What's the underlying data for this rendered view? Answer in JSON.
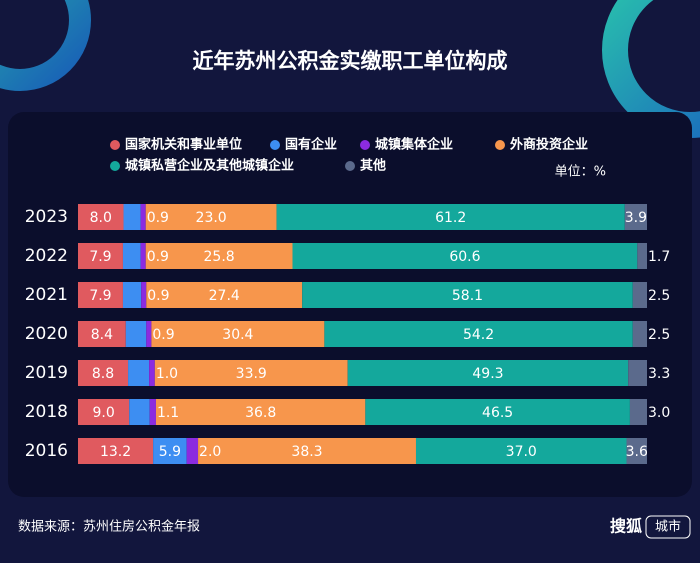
{
  "chart_data": {
    "type": "stacked-bar-horizontal",
    "title": "近年苏州公积金实缴职工单位构成",
    "unit_note": "单位：%",
    "source": "数据来源：苏州住房公积金年报",
    "logo": "搜狐",
    "logo_tag": "城市",
    "categories": [
      "2023",
      "2022",
      "2021",
      "2020",
      "2019",
      "2018",
      "2016"
    ],
    "series": [
      {
        "name": "国家机关和事业单位",
        "color": "#e05a5f",
        "values": [
          8.0,
          7.9,
          7.9,
          8.4,
          8.8,
          9.0,
          13.2
        ],
        "value_labels": [
          "8.0",
          "7.9",
          "7.9",
          "8.4",
          "8.8",
          "9.0",
          "13.2"
        ]
      },
      {
        "name": "国有企业",
        "color": "#3d8ef2",
        "values": [
          3.0,
          3.1,
          3.2,
          3.6,
          3.7,
          3.6,
          5.9
        ],
        "value_labels": [
          null,
          null,
          null,
          null,
          null,
          null,
          "5.9"
        ]
      },
      {
        "name": "城镇集体企业",
        "color": "#8b2be0",
        "values": [
          0.9,
          0.9,
          0.9,
          0.9,
          1.0,
          1.1,
          2.0
        ],
        "value_labels": [
          "0.9",
          "0.9",
          "0.9",
          "0.9",
          "1.0",
          "1.1",
          "2.0"
        ]
      },
      {
        "name": "外商投资企业",
        "color": "#f7964c",
        "values": [
          23.0,
          25.8,
          27.4,
          30.4,
          33.9,
          36.8,
          38.3
        ],
        "value_labels": [
          "23.0",
          "25.8",
          "27.4",
          "30.4",
          "33.9",
          "36.8",
          "38.3"
        ]
      },
      {
        "name": "城镇私营企业及其他城镇企业",
        "color": "#14a89c",
        "values": [
          61.2,
          60.6,
          58.1,
          54.2,
          49.3,
          46.5,
          37.0
        ],
        "value_labels": [
          "61.2",
          "60.6",
          "58.1",
          "54.2",
          "49.3",
          "46.5",
          "37.0"
        ]
      },
      {
        "name": "其他",
        "color": "#5b6a8c",
        "values": [
          3.9,
          1.7,
          2.5,
          2.5,
          3.3,
          3.0,
          3.6
        ],
        "value_labels": [
          "3.9",
          "1.7",
          "2.5",
          "2.5",
          "3.3",
          "3.0",
          "3.6"
        ]
      }
    ],
    "xlim": [
      0,
      100
    ]
  }
}
